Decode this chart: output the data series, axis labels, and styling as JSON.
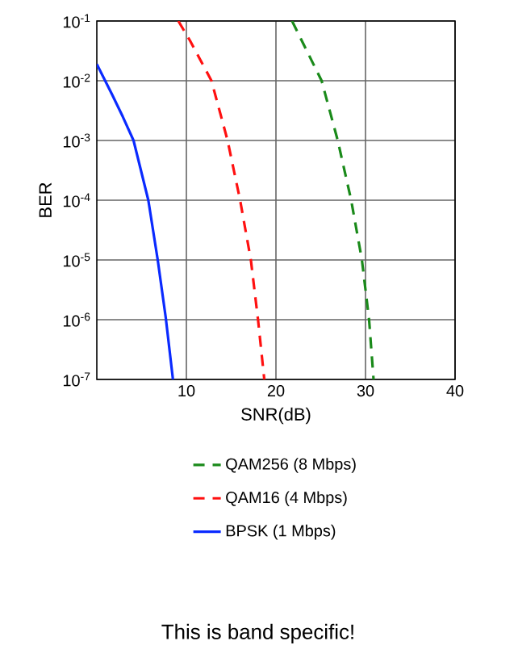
{
  "chart_data": {
    "type": "line",
    "xlabel": "SNR(dB)",
    "ylabel": "BER",
    "xlim": [
      0,
      40
    ],
    "xticks": [
      10,
      20,
      30,
      40
    ],
    "ylim": [
      1e-07,
      0.1
    ],
    "yticks": [
      {
        "value": 1e-07,
        "label": "10$^{-7}$"
      },
      {
        "value": 1e-06,
        "label": "10$^{-6}$"
      },
      {
        "value": 1e-05,
        "label": "10$^{-5}$"
      },
      {
        "value": 0.0001,
        "label": "10$^{-4}$"
      },
      {
        "value": 0.001,
        "label": "10$^{-3}$"
      },
      {
        "value": 0.01,
        "label": "10$^{-2}$"
      },
      {
        "value": 0.1,
        "label": "10$^{-1}$"
      }
    ],
    "log": "y",
    "grid": true,
    "legend": "bottom",
    "marker": "none",
    "series": [
      {
        "name": "QAM256 (8 Mbps)",
        "color": "#1a8a1a",
        "line_style": "dashed",
        "x": [
          21.8,
          25.1,
          26.9,
          28.4,
          29.6,
          30.4,
          30.9
        ],
        "values": [
          0.1,
          0.01,
          0.001,
          0.0001,
          1e-05,
          1e-06,
          1e-07
        ]
      },
      {
        "name": "QAM16 (4 Mbps)",
        "color": "#ff1010",
        "line_style": "dashed",
        "x": [
          9.1,
          10.4,
          12.8,
          14.6,
          16.0,
          17.2,
          18.0,
          18.7
        ],
        "values": [
          0.1,
          0.047,
          0.01,
          0.001,
          0.0001,
          1e-05,
          1e-06,
          1e-07
        ]
      },
      {
        "name": "BPSK (1 Mbps)",
        "color": "#0a2aff",
        "line_style": "solid",
        "x": [
          0,
          1.7,
          2.9,
          4.1,
          5.75,
          6.8,
          7.7,
          8.5
        ],
        "values": [
          0.019,
          0.0059,
          0.0025,
          0.001,
          0.0001,
          1e-05,
          1.07e-06,
          1e-07
        ]
      }
    ],
    "annotations": [
      "This is band specific!"
    ]
  }
}
